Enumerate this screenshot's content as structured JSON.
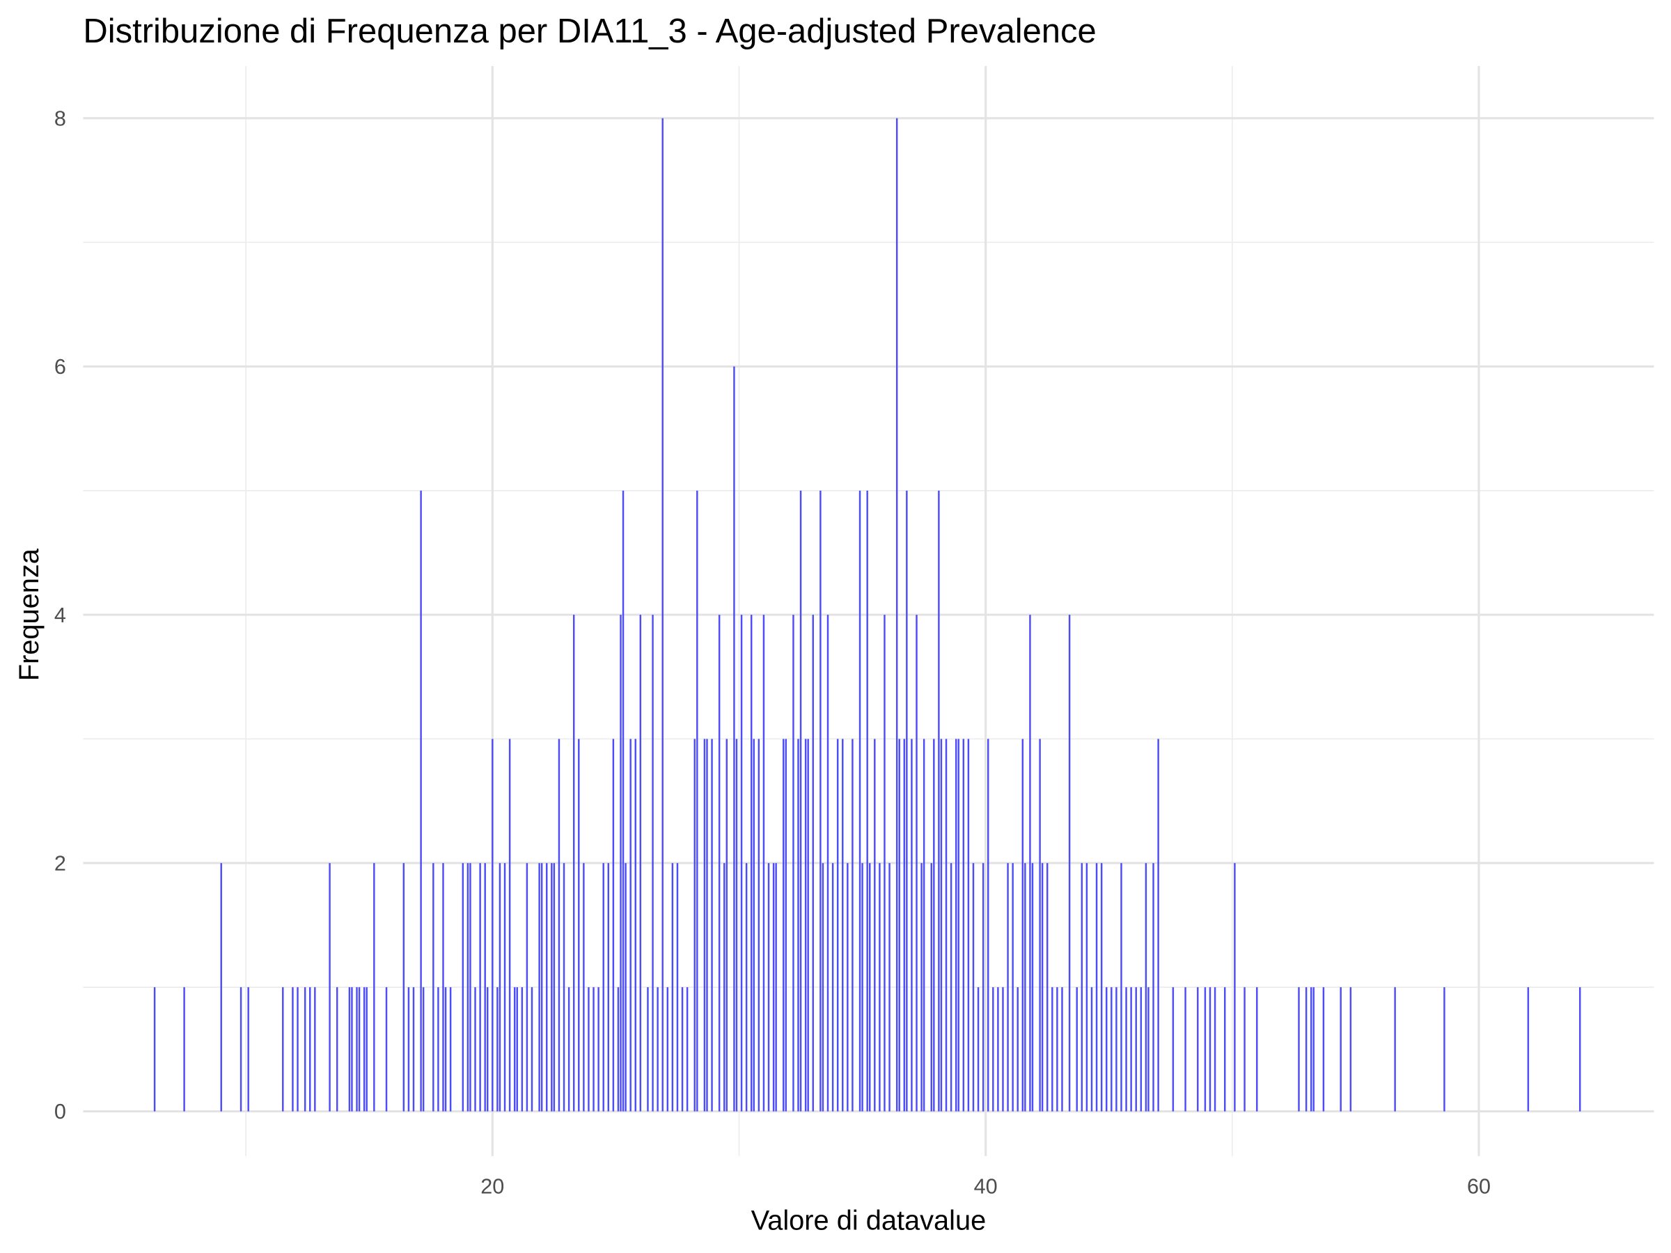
{
  "chart_data": {
    "type": "histogram",
    "title": "Distribuzione di Frequenza per DIA11_3 - Age-adjusted Prevalence",
    "x_label": "Valore di datavalue",
    "y_label": "Frequenza",
    "color": "#4d4df7",
    "xlim": [
      3.4,
      67.1
    ],
    "ylim": [
      -0.36,
      8.42
    ],
    "xticks": [
      20,
      40,
      60
    ],
    "yticks": [
      0,
      2,
      4,
      6,
      8
    ],
    "x_minor_grid": [
      10,
      30,
      50
    ],
    "y_minor_grid": [
      1,
      3,
      5,
      7
    ],
    "grid": true,
    "x": [
      6.3,
      7.5,
      9.0,
      9.8,
      10.1,
      11.5,
      11.9,
      12.1,
      12.4,
      12.6,
      12.8,
      13.4,
      13.7,
      14.2,
      14.3,
      14.5,
      14.6,
      14.8,
      14.9,
      15.2,
      15.7,
      16.4,
      16.6,
      16.8,
      17.1,
      17.2,
      17.6,
      17.8,
      18.0,
      18.1,
      18.3,
      18.8,
      19.0,
      19.1,
      19.3,
      19.5,
      19.7,
      19.8,
      20.0,
      20.2,
      20.3,
      20.5,
      20.7,
      20.9,
      21.0,
      21.2,
      21.4,
      21.6,
      21.9,
      22.0,
      22.2,
      22.4,
      22.5,
      22.7,
      22.9,
      23.1,
      23.3,
      23.5,
      23.7,
      23.9,
      24.1,
      24.3,
      24.5,
      24.7,
      24.9,
      25.1,
      25.2,
      25.3,
      25.4,
      25.6,
      25.8,
      26.0,
      26.3,
      26.5,
      26.7,
      26.9,
      27.1,
      27.3,
      27.5,
      27.7,
      27.9,
      28.2,
      28.3,
      28.6,
      28.7,
      28.9,
      29.2,
      29.4,
      29.5,
      29.8,
      29.9,
      30.1,
      30.3,
      30.5,
      30.6,
      30.8,
      31.0,
      31.2,
      31.4,
      31.5,
      31.8,
      31.9,
      32.2,
      32.4,
      32.5,
      32.7,
      32.8,
      33.0,
      33.3,
      33.4,
      33.6,
      33.8,
      34.0,
      34.2,
      34.4,
      34.6,
      34.9,
      35.0,
      35.2,
      35.3,
      35.5,
      35.7,
      35.9,
      36.1,
      36.4,
      36.5,
      36.7,
      36.8,
      37.0,
      37.2,
      37.4,
      37.5,
      37.8,
      37.9,
      38.1,
      38.2,
      38.4,
      38.6,
      38.8,
      38.9,
      39.1,
      39.3,
      39.5,
      39.7,
      39.9,
      40.1,
      40.3,
      40.5,
      40.7,
      40.9,
      41.1,
      41.3,
      41.5,
      41.6,
      41.8,
      41.9,
      42.2,
      42.3,
      42.5,
      42.7,
      42.9,
      43.1,
      43.4,
      43.7,
      43.9,
      44.1,
      44.3,
      44.5,
      44.7,
      44.9,
      45.1,
      45.3,
      45.5,
      45.7,
      45.9,
      46.1,
      46.3,
      46.5,
      46.6,
      46.8,
      47.0,
      47.6,
      48.1,
      48.6,
      48.9,
      49.1,
      49.3,
      49.7,
      50.1,
      50.5,
      51.0,
      52.7,
      53.0,
      53.2,
      53.3,
      53.7,
      54.4,
      54.8,
      56.6,
      58.6,
      62.0,
      64.1
    ],
    "values": [
      1,
      1,
      2,
      1,
      1,
      1,
      1,
      1,
      1,
      1,
      1,
      2,
      1,
      1,
      1,
      1,
      1,
      1,
      1,
      2,
      1,
      2,
      1,
      1,
      5,
      1,
      2,
      1,
      2,
      1,
      1,
      2,
      2,
      2,
      1,
      2,
      2,
      1,
      3,
      1,
      2,
      2,
      3,
      1,
      1,
      1,
      2,
      1,
      2,
      2,
      2,
      2,
      2,
      3,
      2,
      1,
      4,
      3,
      2,
      1,
      1,
      1,
      2,
      2,
      3,
      1,
      4,
      5,
      2,
      3,
      3,
      4,
      1,
      4,
      1,
      8,
      1,
      2,
      2,
      1,
      1,
      3,
      5,
      3,
      3,
      3,
      4,
      2,
      3,
      6,
      3,
      4,
      2,
      4,
      3,
      3,
      4,
      2,
      2,
      2,
      3,
      3,
      4,
      3,
      5,
      3,
      3,
      4,
      5,
      2,
      4,
      2,
      3,
      3,
      2,
      3,
      5,
      2,
      5,
      2,
      3,
      2,
      4,
      2,
      8,
      3,
      3,
      5,
      3,
      4,
      2,
      3,
      2,
      3,
      5,
      3,
      3,
      2,
      3,
      3,
      3,
      3,
      2,
      1,
      2,
      3,
      1,
      1,
      1,
      2,
      2,
      1,
      3,
      2,
      4,
      2,
      3,
      2,
      2,
      1,
      1,
      1,
      4,
      1,
      2,
      2,
      1,
      2,
      2,
      1,
      1,
      1,
      2,
      1,
      1,
      1,
      1,
      2,
      1,
      2,
      3,
      1,
      1,
      1,
      1,
      1,
      1,
      1,
      2,
      1,
      1,
      1,
      1,
      1,
      1,
      1,
      1,
      1,
      1,
      1,
      1,
      1
    ]
  }
}
